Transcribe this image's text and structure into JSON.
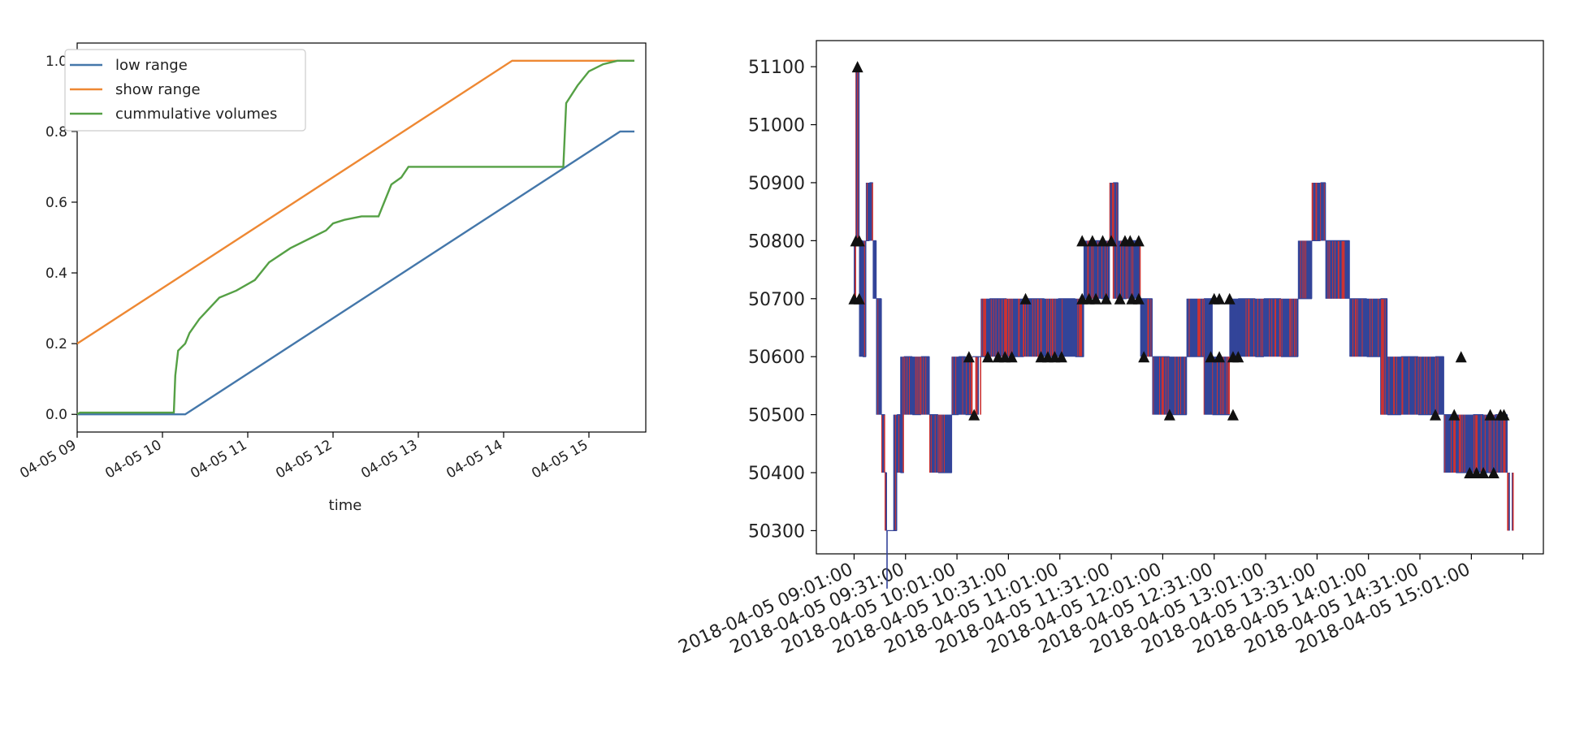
{
  "colors": {
    "blue": "#4477aa",
    "orange": "#ee8833",
    "green": "#55a045",
    "red": "#cc3333",
    "navy": "#334499",
    "marker": "#111111"
  },
  "chart_data": [
    {
      "type": "line",
      "title": "",
      "xlabel": "time",
      "ylabel": "",
      "x_ticks": [
        "04-05 09",
        "04-05 10",
        "04-05 11",
        "04-05 12",
        "04-05 13",
        "04-05 14",
        "04-05 15"
      ],
      "y_ticks": [
        "0.0",
        "0.2",
        "0.4",
        "0.6",
        "0.8",
        "1.0"
      ],
      "xlim": [
        "2018-04-05 09:00",
        "2018-04-05 15:40"
      ],
      "ylim": [
        -0.05,
        1.05
      ],
      "legend_position": "top-left",
      "grid": false,
      "series": [
        {
          "name": "low range",
          "color_key": "blue",
          "points": [
            [
              "2018-04-05 09:00",
              0.0
            ],
            [
              "2018-04-05 10:16",
              0.0
            ],
            [
              "2018-04-05 15:22",
              0.8
            ],
            [
              "2018-04-05 15:32",
              0.8
            ]
          ]
        },
        {
          "name": "show range",
          "color_key": "orange",
          "points": [
            [
              "2018-04-05 09:00",
              0.2
            ],
            [
              "2018-04-05 14:06",
              1.0
            ],
            [
              "2018-04-05 15:32",
              1.0
            ]
          ]
        },
        {
          "name": "cummulative volumes",
          "color_key": "green",
          "points": [
            [
              "2018-04-05 09:00",
              0.0
            ],
            [
              "2018-04-05 09:02",
              0.005
            ],
            [
              "2018-04-05 10:08",
              0.005
            ],
            [
              "2018-04-05 10:09",
              0.11
            ],
            [
              "2018-04-05 10:11",
              0.18
            ],
            [
              "2018-04-05 10:16",
              0.2
            ],
            [
              "2018-04-05 10:19",
              0.23
            ],
            [
              "2018-04-05 10:26",
              0.27
            ],
            [
              "2018-04-05 10:33",
              0.3
            ],
            [
              "2018-04-05 10:40",
              0.33
            ],
            [
              "2018-04-05 10:52",
              0.35
            ],
            [
              "2018-04-05 11:05",
              0.38
            ],
            [
              "2018-04-05 11:15",
              0.43
            ],
            [
              "2018-04-05 11:30",
              0.47
            ],
            [
              "2018-04-05 11:45",
              0.5
            ],
            [
              "2018-04-05 11:55",
              0.52
            ],
            [
              "2018-04-05 12:00",
              0.54
            ],
            [
              "2018-04-05 12:08",
              0.55
            ],
            [
              "2018-04-05 12:20",
              0.56
            ],
            [
              "2018-04-05 12:32",
              0.56
            ],
            [
              "2018-04-05 12:36",
              0.6
            ],
            [
              "2018-04-05 12:41",
              0.65
            ],
            [
              "2018-04-05 12:48",
              0.67
            ],
            [
              "2018-04-05 12:53",
              0.7
            ],
            [
              "2018-04-05 14:42",
              0.7
            ],
            [
              "2018-04-05 14:44",
              0.88
            ],
            [
              "2018-04-05 14:52",
              0.93
            ],
            [
              "2018-04-05 15:00",
              0.97
            ],
            [
              "2018-04-05 15:10",
              0.99
            ],
            [
              "2018-04-05 15:20",
              1.0
            ],
            [
              "2018-04-05 15:32",
              1.0
            ]
          ]
        }
      ]
    },
    {
      "type": "line",
      "title": "",
      "xlabel": "",
      "ylabel": "",
      "x_ticks": [
        "2018-04-05 09:01:00",
        "2018-04-05 09:31:00",
        "2018-04-05 10:01:00",
        "2018-04-05 10:31:00",
        "2018-04-05 11:01:00",
        "2018-04-05 11:31:00",
        "2018-04-05 12:01:00",
        "2018-04-05 12:31:00",
        "2018-04-05 13:01:00",
        "2018-04-05 13:31:00",
        "2018-04-05 14:01:00",
        "2018-04-05 14:31:00",
        "2018-04-05 15:01:00"
      ],
      "y_ticks": [
        "50300",
        "50400",
        "50500",
        "50600",
        "50700",
        "50800",
        "50900",
        "51000",
        "51100"
      ],
      "xlim": [
        "2018-04-05 08:39",
        "2018-04-05 15:43"
      ],
      "ylim": [
        50260,
        51145
      ],
      "grid": false,
      "price_levels": [
        [
          "2018-04-05 09:01",
          50700
        ],
        [
          "2018-04-05 09:02",
          50800
        ],
        [
          "2018-04-05 09:03",
          51100
        ],
        [
          "2018-04-05 09:04",
          50800
        ],
        [
          "2018-04-05 09:06",
          50600
        ],
        [
          "2018-04-05 09:08",
          50800
        ],
        [
          "2018-04-05 09:10",
          50900
        ],
        [
          "2018-04-05 09:12",
          50800
        ],
        [
          "2018-04-05 09:14",
          50700
        ],
        [
          "2018-04-05 09:17",
          50500
        ],
        [
          "2018-04-05 09:19",
          50400
        ],
        [
          "2018-04-05 09:20",
          50300
        ],
        [
          "2018-04-05 09:24",
          50300
        ],
        [
          "2018-04-05 09:26",
          50500
        ],
        [
          "2018-04-05 09:28",
          50400
        ],
        [
          "2018-04-05 09:30",
          50600
        ],
        [
          "2018-04-05 09:35",
          50500
        ],
        [
          "2018-04-05 09:40",
          50600
        ],
        [
          "2018-04-05 09:45",
          50500
        ],
        [
          "2018-04-05 09:50",
          50400
        ],
        [
          "2018-04-05 09:58",
          50500
        ],
        [
          "2018-04-05 10:02",
          50600
        ],
        [
          "2018-04-05 10:06",
          50500
        ],
        [
          "2018-04-05 10:10",
          50600
        ],
        [
          "2018-04-05 10:15",
          50600
        ],
        [
          "2018-04-05 10:20",
          50700
        ],
        [
          "2018-04-05 10:30",
          50600
        ],
        [
          "2018-04-05 10:40",
          50700
        ],
        [
          "2018-04-05 10:52",
          50600
        ],
        [
          "2018-04-05 11:00",
          50700
        ],
        [
          "2018-04-05 11:10",
          50600
        ],
        [
          "2018-04-05 11:15",
          50700
        ],
        [
          "2018-04-05 11:18",
          50800
        ],
        [
          "2018-04-05 11:25",
          50700
        ],
        [
          "2018-04-05 11:30",
          50800
        ],
        [
          "2018-04-05 11:32",
          50900
        ],
        [
          "2018-04-05 11:35",
          50700
        ],
        [
          "2018-04-05 11:40",
          50800
        ],
        [
          "2018-04-05 11:48",
          50700
        ],
        [
          "2018-04-05 11:55",
          50600
        ],
        [
          "2018-04-05 12:05",
          50500
        ],
        [
          "2018-04-05 12:15",
          50600
        ],
        [
          "2018-04-05 12:25",
          50700
        ],
        [
          "2018-04-05 12:30",
          50500
        ],
        [
          "2018-04-05 12:40",
          50600
        ],
        [
          "2018-04-05 12:45",
          50700
        ],
        [
          "2018-04-05 12:55",
          50600
        ],
        [
          "2018-04-05 13:00",
          50700
        ],
        [
          "2018-04-05 13:10",
          50600
        ],
        [
          "2018-04-05 13:20",
          50700
        ],
        [
          "2018-04-05 13:28",
          50800
        ],
        [
          "2018-04-05 13:33",
          50900
        ],
        [
          "2018-04-05 13:36",
          50800
        ],
        [
          "2018-04-05 13:50",
          50700
        ],
        [
          "2018-04-05 14:00",
          50600
        ],
        [
          "2018-04-05 14:08",
          50700
        ],
        [
          "2018-04-05 14:12",
          50500
        ],
        [
          "2018-04-05 14:20",
          50600
        ],
        [
          "2018-04-05 14:30",
          50500
        ],
        [
          "2018-04-05 14:40",
          50600
        ],
        [
          "2018-04-05 14:45",
          50500
        ],
        [
          "2018-04-05 14:52",
          50400
        ],
        [
          "2018-04-05 15:02",
          50500
        ],
        [
          "2018-04-05 15:08",
          50400
        ],
        [
          "2018-04-05 15:15",
          50500
        ],
        [
          "2018-04-05 15:22",
          50400
        ]
      ],
      "markers": [
        [
          "2018-04-05 09:01",
          50700
        ],
        [
          "2018-04-05 09:02",
          50800
        ],
        [
          "2018-04-05 09:03",
          51100
        ],
        [
          "2018-04-05 09:04",
          50800
        ],
        [
          "2018-04-05 09:04",
          50700
        ],
        [
          "2018-04-05 10:08",
          50600
        ],
        [
          "2018-04-05 10:11",
          50500
        ],
        [
          "2018-04-05 10:19",
          50600
        ],
        [
          "2018-04-05 10:25",
          50600
        ],
        [
          "2018-04-05 10:29",
          50600
        ],
        [
          "2018-04-05 10:33",
          50600
        ],
        [
          "2018-04-05 10:41",
          50700
        ],
        [
          "2018-04-05 10:50",
          50600
        ],
        [
          "2018-04-05 10:54",
          50600
        ],
        [
          "2018-04-05 10:58",
          50600
        ],
        [
          "2018-04-05 11:02",
          50600
        ],
        [
          "2018-04-05 11:14",
          50800
        ],
        [
          "2018-04-05 11:14",
          50700
        ],
        [
          "2018-04-05 11:18",
          50700
        ],
        [
          "2018-04-05 11:20",
          50800
        ],
        [
          "2018-04-05 11:22",
          50700
        ],
        [
          "2018-04-05 11:26",
          50800
        ],
        [
          "2018-04-05 11:28",
          50700
        ],
        [
          "2018-04-05 11:31",
          50800
        ],
        [
          "2018-04-05 11:36",
          50700
        ],
        [
          "2018-04-05 11:39",
          50800
        ],
        [
          "2018-04-05 11:42",
          50800
        ],
        [
          "2018-04-05 11:43",
          50700
        ],
        [
          "2018-04-05 11:47",
          50800
        ],
        [
          "2018-04-05 11:47",
          50700
        ],
        [
          "2018-04-05 11:50",
          50600
        ],
        [
          "2018-04-05 12:05",
          50500
        ],
        [
          "2018-04-05 12:29",
          50600
        ],
        [
          "2018-04-05 12:31",
          50700
        ],
        [
          "2018-04-05 12:34",
          50700
        ],
        [
          "2018-04-05 12:34",
          50600
        ],
        [
          "2018-04-05 12:40",
          50700
        ],
        [
          "2018-04-05 12:42",
          50500
        ],
        [
          "2018-04-05 12:42",
          50600
        ],
        [
          "2018-04-05 12:45",
          50600
        ],
        [
          "2018-04-05 14:40",
          50500
        ],
        [
          "2018-04-05 14:51",
          50500
        ],
        [
          "2018-04-05 14:55",
          50600
        ],
        [
          "2018-04-05 15:00",
          50400
        ],
        [
          "2018-04-05 15:04",
          50400
        ],
        [
          "2018-04-05 15:08",
          50400
        ],
        [
          "2018-04-05 15:12",
          50500
        ],
        [
          "2018-04-05 15:14",
          50400
        ],
        [
          "2018-04-05 15:18",
          50500
        ],
        [
          "2018-04-05 15:20",
          50500
        ]
      ]
    }
  ]
}
